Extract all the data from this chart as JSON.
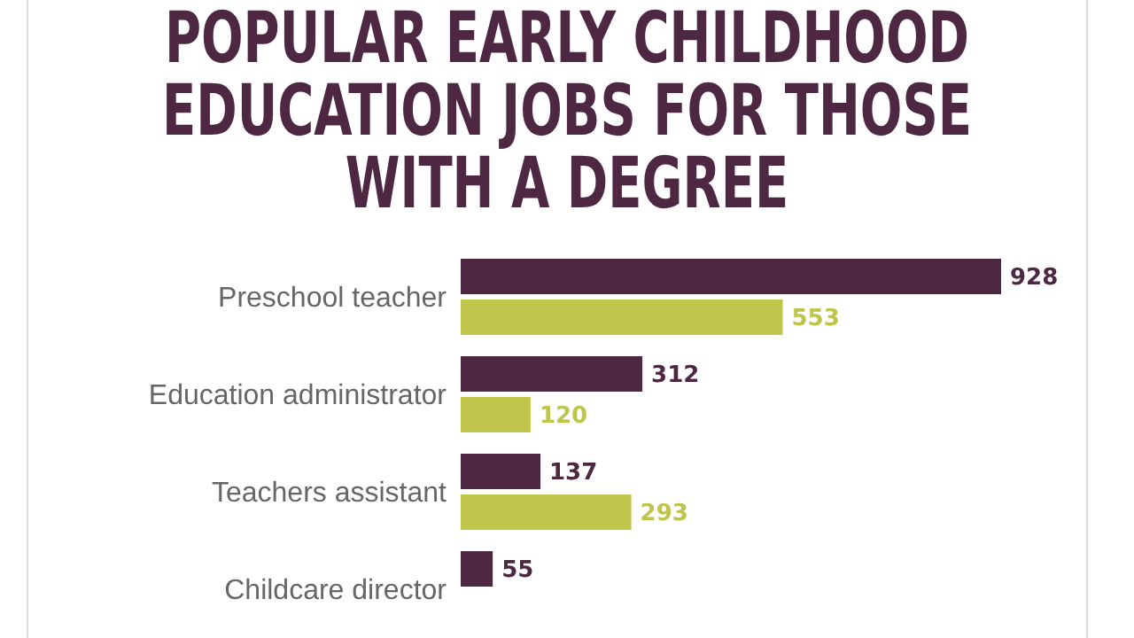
{
  "chart_data": {
    "type": "bar",
    "orientation": "horizontal",
    "title": "POPULAR EARLY CHILDHOOD EDUCATION JOBS FOR THOSE WITH A DEGREE",
    "categories": [
      "Preschool teacher",
      "Education administrator",
      "Teachers assistant",
      "Childcare director"
    ],
    "series": [
      {
        "color": "#4e2843",
        "values": [
          928,
          312,
          137,
          55
        ]
      },
      {
        "color": "#bfc54b",
        "values": [
          553,
          120,
          293,
          null
        ]
      }
    ],
    "data_labels": true
  }
}
